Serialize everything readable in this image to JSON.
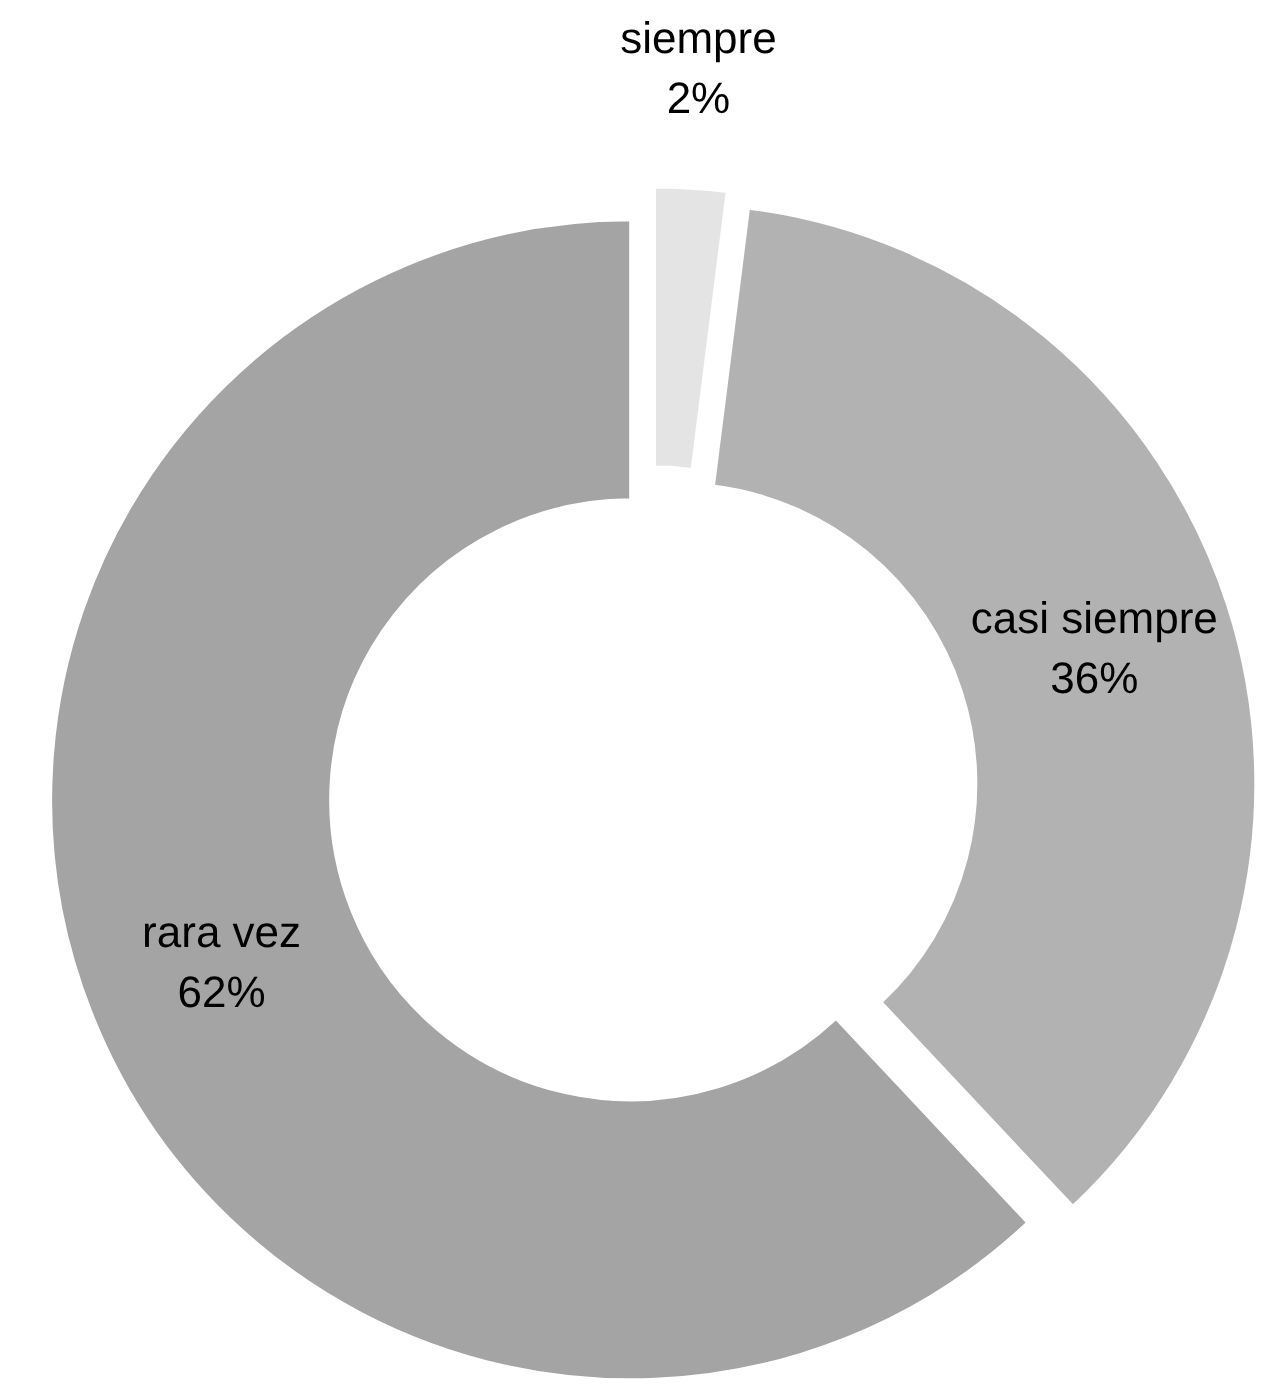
{
  "chart_data": {
    "type": "donut",
    "categories": [
      "siempre",
      "casi siempre",
      "rara vez"
    ],
    "values": [
      2,
      36,
      62
    ],
    "colors": [
      "#e4e4e4",
      "#b2b2b2",
      "#a4a4a4"
    ],
    "value_labels": [
      "2%",
      "36%",
      "62%"
    ]
  }
}
